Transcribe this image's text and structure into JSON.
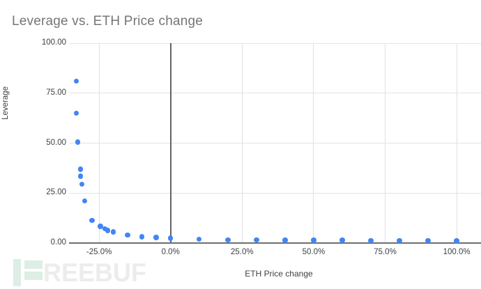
{
  "title": "Leverage vs. ETH Price change",
  "colors": {
    "point": "#4285f4",
    "title": "#757575",
    "tick_label": "#3c4043",
    "gridline": "#e3e3e3",
    "zero_line": "#616161",
    "axis_line": "#6e6e6e",
    "watermark_green": "#ddeee4",
    "watermark_gray": "#ececec"
  },
  "watermark": {
    "icon": "freebuf-logo-icon",
    "text": "REEBUF"
  },
  "chart_data": {
    "type": "scatter",
    "title": "Leverage vs. ETH Price change",
    "xlabel": "ETH Price change",
    "ylabel": "Leverage",
    "xlim": [
      -35.5,
      108.5
    ],
    "ylim": [
      0,
      100
    ],
    "grid": true,
    "legend": "none",
    "x_ticks": [
      {
        "value": -25,
        "label": "-25.0%"
      },
      {
        "value": 0,
        "label": "0.0%"
      },
      {
        "value": 25,
        "label": "25.0%"
      },
      {
        "value": 50,
        "label": "50.0%"
      },
      {
        "value": 75,
        "label": "75.0%"
      },
      {
        "value": 100,
        "label": "100.0%"
      }
    ],
    "y_ticks": [
      {
        "value": 0,
        "label": "0.00"
      },
      {
        "value": 25,
        "label": "25.00"
      },
      {
        "value": 50,
        "label": "50.00"
      },
      {
        "value": 75,
        "label": "75.00"
      },
      {
        "value": 100,
        "label": "100.00"
      }
    ],
    "points": [
      {
        "x": -33.0,
        "y": 81.0
      },
      {
        "x": -33.0,
        "y": 65.0
      },
      {
        "x": -32.5,
        "y": 50.5
      },
      {
        "x": -31.5,
        "y": 37.0
      },
      {
        "x": -31.5,
        "y": 33.5
      },
      {
        "x": -31.0,
        "y": 29.5
      },
      {
        "x": -30.0,
        "y": 21.0
      },
      {
        "x": -27.5,
        "y": 11.3
      },
      {
        "x": -24.5,
        "y": 8.3
      },
      {
        "x": -23.0,
        "y": 7.1
      },
      {
        "x": -22.0,
        "y": 6.2
      },
      {
        "x": -20.0,
        "y": 5.5
      },
      {
        "x": -15.0,
        "y": 4.0
      },
      {
        "x": -10.0,
        "y": 3.1
      },
      {
        "x": -5.0,
        "y": 2.8
      },
      {
        "x": 0.0,
        "y": 2.5
      },
      {
        "x": 10.0,
        "y": 1.9
      },
      {
        "x": 20.0,
        "y": 1.65
      },
      {
        "x": 30.0,
        "y": 1.5
      },
      {
        "x": 40.0,
        "y": 1.45
      },
      {
        "x": 50.0,
        "y": 1.4
      },
      {
        "x": 60.0,
        "y": 1.35
      },
      {
        "x": 70.0,
        "y": 1.3
      },
      {
        "x": 80.0,
        "y": 1.25
      },
      {
        "x": 90.0,
        "y": 1.2
      },
      {
        "x": 100.0,
        "y": 1.1
      }
    ]
  }
}
